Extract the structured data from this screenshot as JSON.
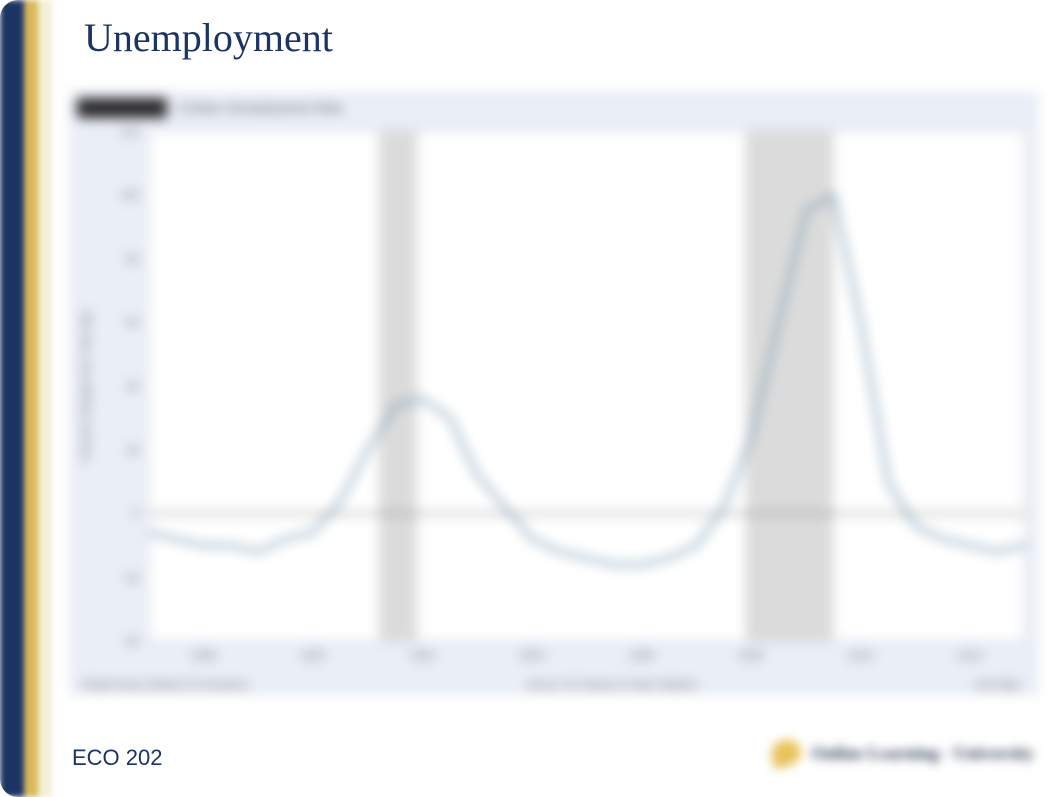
{
  "colors": {
    "navy": "#1c3464",
    "gold": "#d9b95a",
    "cream": "#f4efd8",
    "title": "#1c3464",
    "course": "#1c3464",
    "chart_bg": "#e9eef7",
    "plot_bg": "#ffffff",
    "line": "#6f93ad",
    "zero_line": "#5a5a5a",
    "recession_band": "#d7d7d7",
    "axis_text": "#666666",
    "logo_mark": "#e8c35a",
    "logo_text": "#2a3a52"
  },
  "title": "Unemployment",
  "course_code": "ECO 202",
  "chart": {
    "type": "line",
    "header_label": "FRED",
    "header_subtitle": "Civilian Unemployment Rate",
    "y_label": "Percent Change from Year Ago",
    "ylim": [
      -40,
      120
    ],
    "ytick_step": 20,
    "yticks": [
      -40,
      -20,
      0,
      20,
      40,
      60,
      80,
      100,
      120
    ],
    "x_years": [
      1998,
      2000,
      2002,
      2004,
      2006,
      2008,
      2010,
      2012
    ],
    "xlim": [
      1997,
      2013
    ],
    "recession_bands": [
      {
        "start": 2001.2,
        "end": 2001.9
      },
      {
        "start": 2007.9,
        "end": 2009.5
      }
    ],
    "series": [
      {
        "name": "unemployment_pct_change",
        "points": [
          [
            1997.0,
            -6
          ],
          [
            1997.5,
            -8
          ],
          [
            1998.0,
            -10
          ],
          [
            1998.5,
            -10
          ],
          [
            1999.0,
            -12
          ],
          [
            1999.5,
            -8
          ],
          [
            2000.0,
            -6
          ],
          [
            2000.5,
            4
          ],
          [
            2001.0,
            20
          ],
          [
            2001.5,
            34
          ],
          [
            2002.0,
            36
          ],
          [
            2002.5,
            30
          ],
          [
            2003.0,
            12
          ],
          [
            2003.5,
            2
          ],
          [
            2004.0,
            -8
          ],
          [
            2004.5,
            -12
          ],
          [
            2005.0,
            -14
          ],
          [
            2005.5,
            -16
          ],
          [
            2006.0,
            -16
          ],
          [
            2006.5,
            -14
          ],
          [
            2007.0,
            -10
          ],
          [
            2007.5,
            2
          ],
          [
            2008.0,
            24
          ],
          [
            2008.5,
            60
          ],
          [
            2009.0,
            95
          ],
          [
            2009.5,
            100
          ],
          [
            2010.0,
            60
          ],
          [
            2010.5,
            10
          ],
          [
            2011.0,
            -4
          ],
          [
            2011.5,
            -8
          ],
          [
            2012.0,
            -10
          ],
          [
            2012.5,
            -12
          ],
          [
            2013.0,
            -10
          ]
        ]
      }
    ],
    "footer_left": "Shaded areas indicate US recessions.",
    "footer_center": "Source: US. Bureau of Labor Statistics",
    "footer_right": "myf.red/g/..."
  },
  "logo": {
    "text": "Online Learning · University",
    "mark_color_key": "logo_mark"
  },
  "layout": {
    "slide_w": 1062,
    "slide_h": 797,
    "chart_inner_left_pad": 78,
    "chart_inner_right_pad": 12,
    "chart_inner_top_pad": 8,
    "chart_inner_bottom_pad": 28,
    "line_width": 3,
    "title_fontsize": 40,
    "course_fontsize": 22
  }
}
